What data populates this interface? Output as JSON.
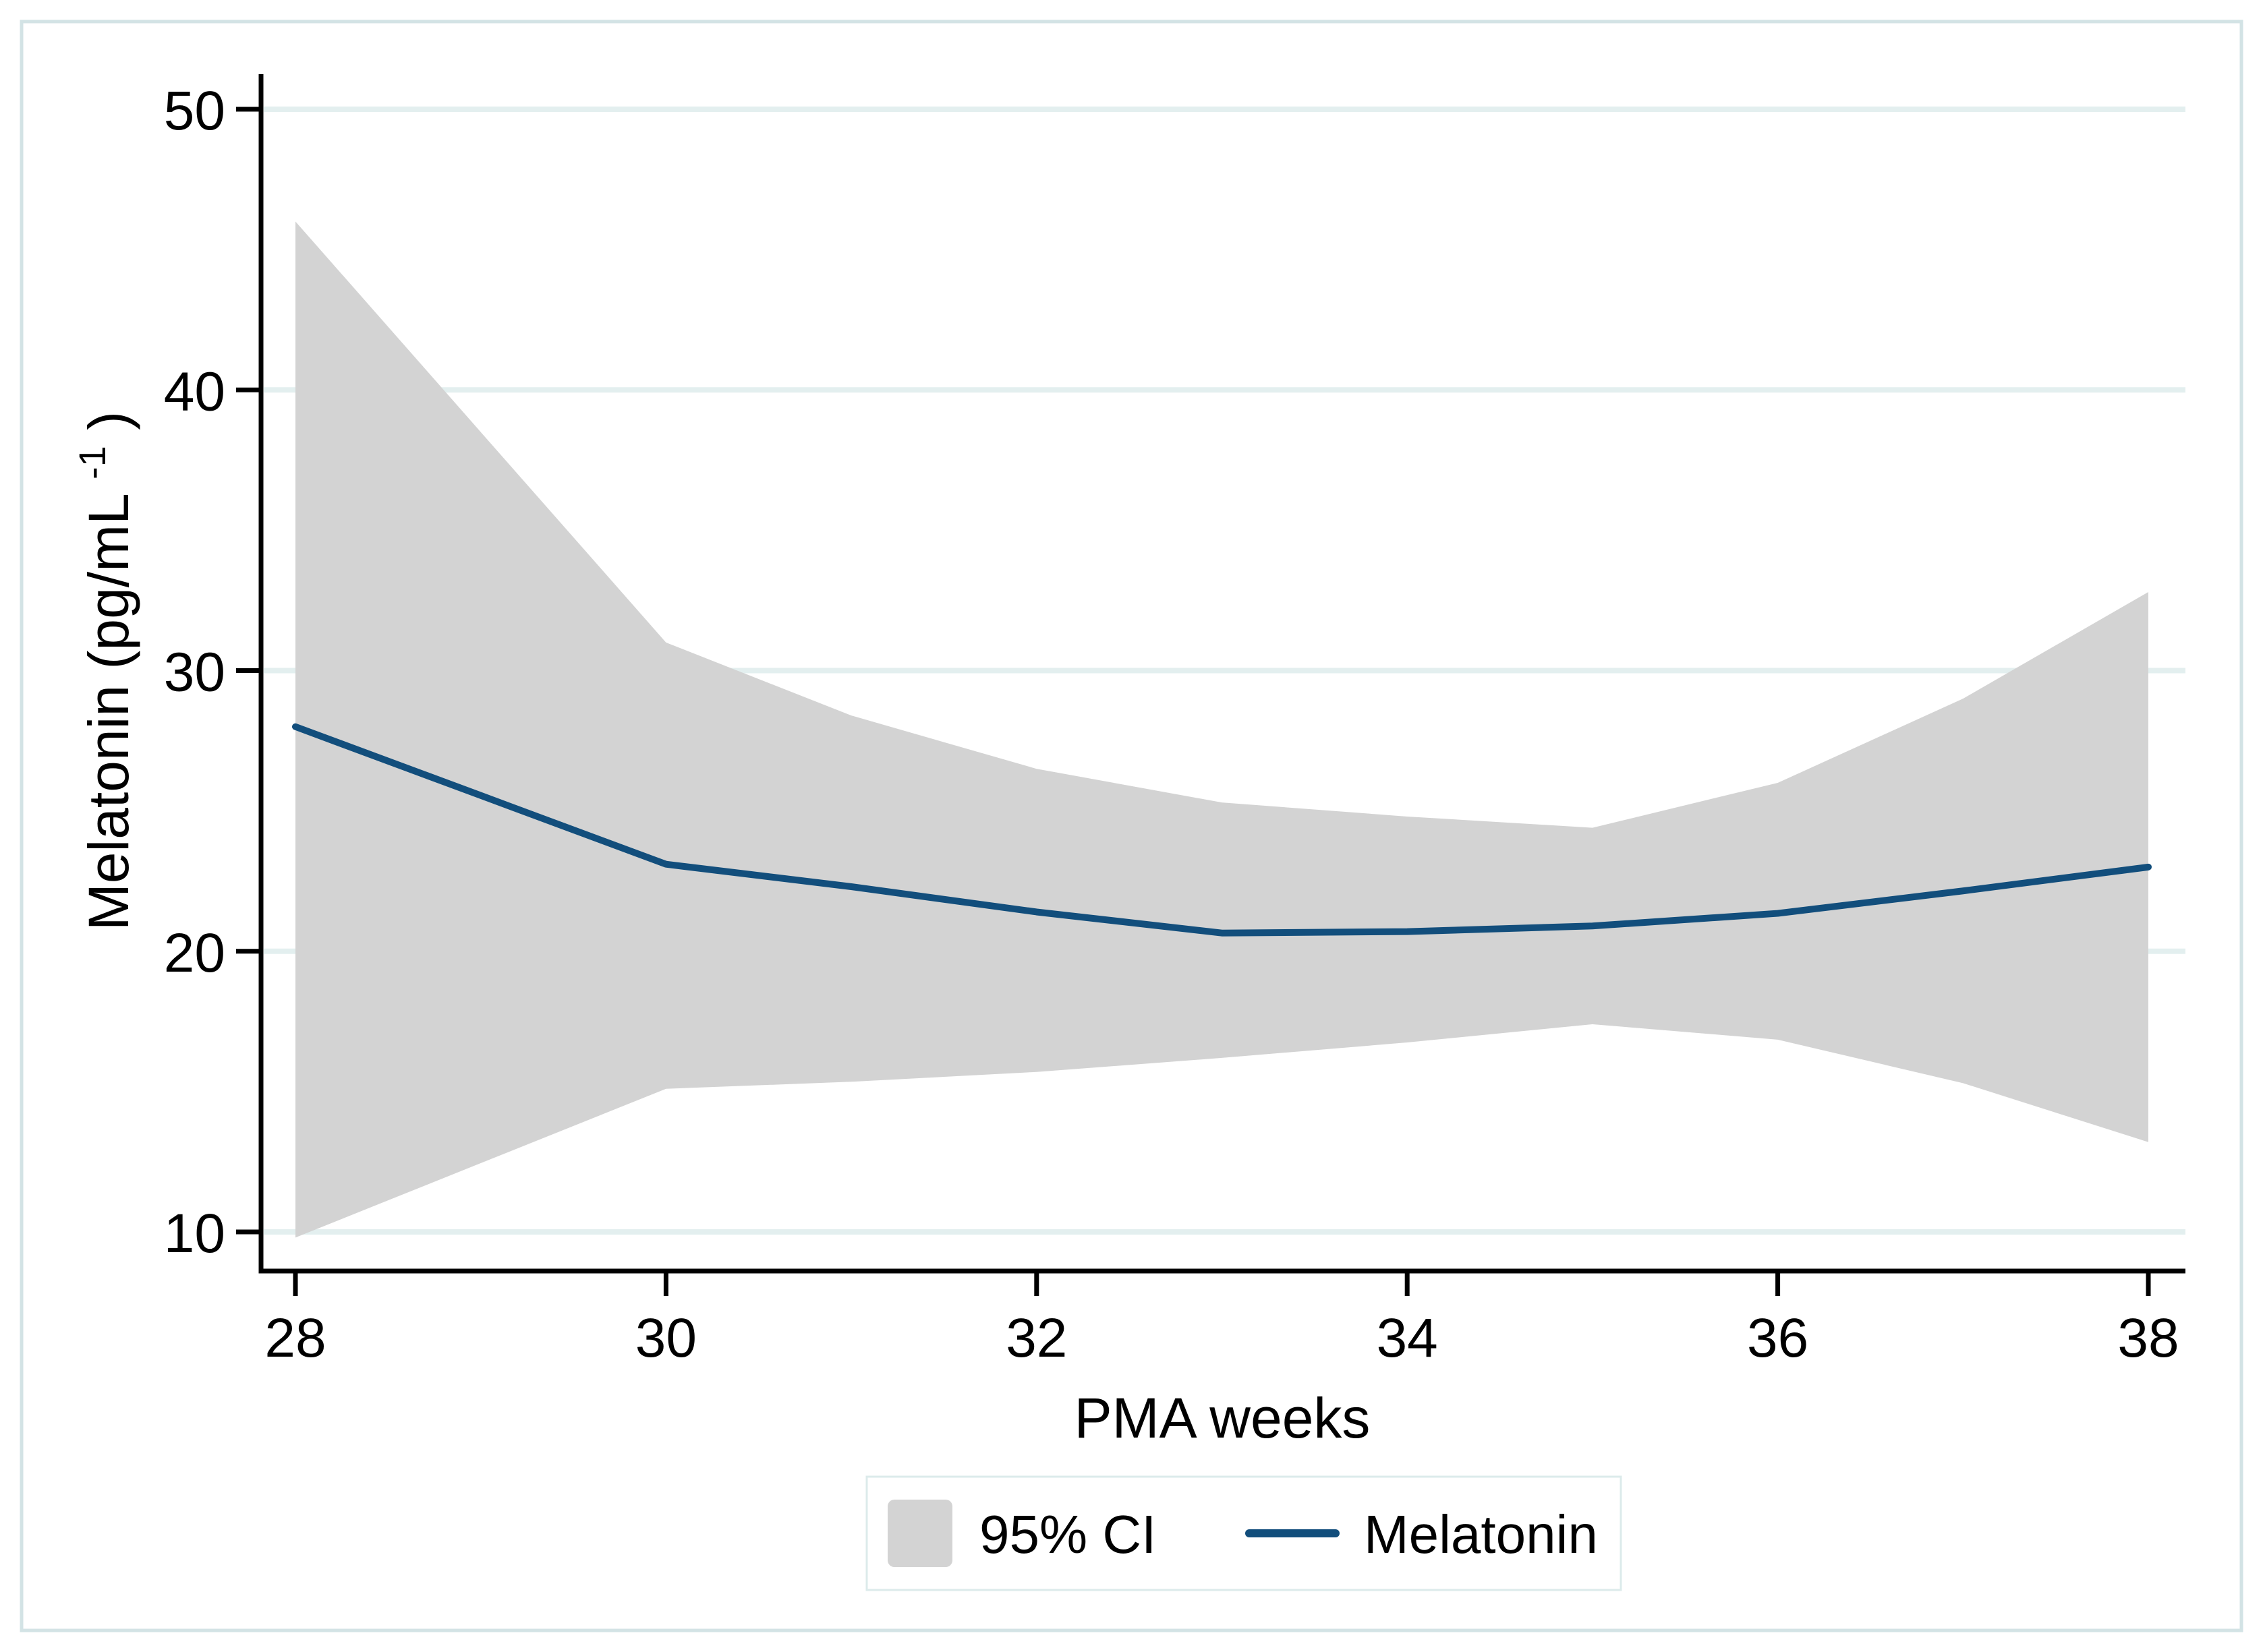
{
  "chart_data": {
    "type": "area",
    "description": "Line plot of predicted melatonin concentration by postmenstrual age with shaded 95% confidence band",
    "x": [
      28,
      29,
      30,
      31,
      32,
      33,
      34,
      35,
      36,
      37,
      38
    ],
    "series": [
      {
        "name": "Melatonin",
        "values": [
          28.0,
          25.55,
          23.1,
          22.3,
          21.4,
          20.65,
          20.7,
          20.9,
          21.35,
          22.15,
          23.0
        ]
      },
      {
        "name": "95% CI upper",
        "values": [
          46.0,
          38.5,
          31.0,
          28.4,
          26.5,
          25.3,
          24.8,
          24.4,
          26.0,
          29.0,
          32.8
        ]
      },
      {
        "name": "95% CI lower",
        "values": [
          9.8,
          12.45,
          15.1,
          15.35,
          15.7,
          16.2,
          16.75,
          17.4,
          16.85,
          15.3,
          13.2
        ]
      }
    ],
    "title": "",
    "xlabel": "PMA weeks",
    "ylabel": "Melatonin (pg/mL⁻¹)",
    "ylabel_parts": {
      "prefix": "Melatonin (pg/mL",
      "superscript": "-1",
      "suffix": ")"
    },
    "xlim": [
      28,
      38
    ],
    "ylim": [
      9,
      51
    ],
    "xticks": [
      28,
      30,
      32,
      34,
      36,
      38
    ],
    "yticks": [
      10,
      20,
      30,
      40,
      50
    ],
    "grid": "horizontal",
    "legend_position": "bottom",
    "colors": {
      "line": "#124e7c",
      "ci_fill": "#d3d3d3",
      "gridline": "#e3efef",
      "axis": "#000000",
      "frame_border": "#d3e3e5",
      "legend_border": "#dcebeb",
      "background": "#ffffff"
    }
  },
  "legend": {
    "ci_label": "95% CI",
    "line_label": "Melatonin"
  },
  "axes": {
    "x_title": "PMA weeks",
    "y_tick_labels": [
      "10",
      "20",
      "30",
      "40",
      "50"
    ],
    "x_tick_labels": [
      "28",
      "30",
      "32",
      "34",
      "36",
      "38"
    ]
  }
}
